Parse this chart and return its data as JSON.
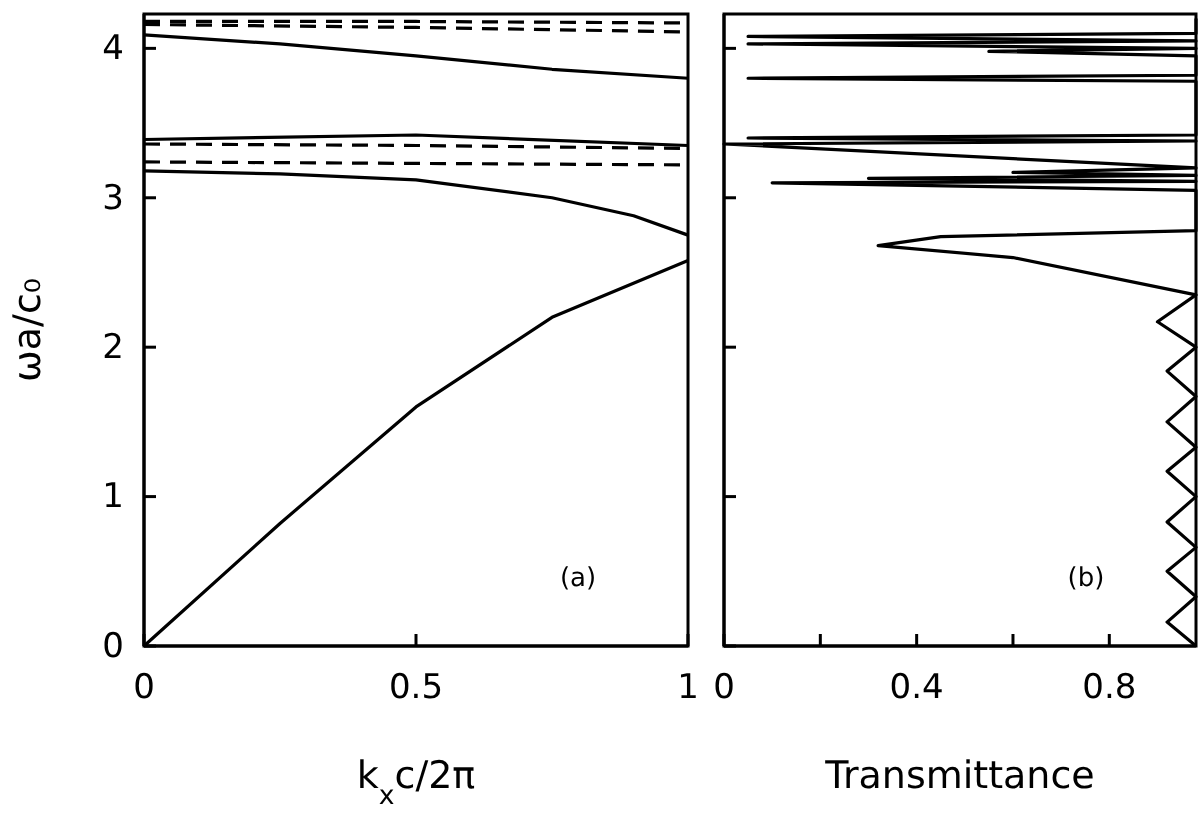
{
  "chart_data": [
    {
      "type": "line",
      "xlabel": "k$_{x}$c/2π",
      "ylabel": "ωa/c₀",
      "xlim": [
        0,
        1
      ],
      "xticks": [
        0,
        0.5,
        1
      ],
      "ylim": [
        0,
        4.23
      ],
      "yticks": [
        0,
        1,
        2,
        3,
        4
      ],
      "annotations": [
        "(a)"
      ],
      "series": [
        {
          "color": "#000000",
          "line_style": "solid",
          "x": [
            0,
            0.25,
            0.5,
            0.75,
            1
          ],
          "values": [
            0,
            0.82,
            1.6,
            2.2,
            2.58
          ]
        },
        {
          "color": "#000000",
          "line_style": "solid",
          "x": [
            0,
            0.25,
            0.5,
            0.75,
            0.9,
            1
          ],
          "values": [
            3.18,
            3.16,
            3.12,
            3.0,
            2.88,
            2.75
          ]
        },
        {
          "color": "#000000",
          "line_style": "dashed",
          "x": [
            0,
            0.5,
            1
          ],
          "values": [
            3.24,
            3.23,
            3.22
          ]
        },
        {
          "color": "#000000",
          "line_style": "dashed",
          "x": [
            0,
            0.5,
            1
          ],
          "values": [
            3.36,
            3.35,
            3.33
          ]
        },
        {
          "color": "#000000",
          "line_style": "solid",
          "x": [
            0,
            0.5,
            1
          ],
          "values": [
            3.39,
            3.42,
            3.35
          ]
        },
        {
          "color": "#000000",
          "line_style": "solid",
          "x": [
            0,
            0.25,
            0.5,
            0.75,
            1
          ],
          "values": [
            4.09,
            4.03,
            3.95,
            3.86,
            3.8
          ]
        },
        {
          "color": "#000000",
          "line_style": "dashed",
          "x": [
            0,
            0.5,
            1
          ],
          "values": [
            4.16,
            4.14,
            4.11
          ]
        },
        {
          "color": "#000000",
          "line_style": "dashed",
          "x": [
            0,
            0.5,
            1
          ],
          "values": [
            4.18,
            4.18,
            4.17
          ]
        }
      ]
    },
    {
      "type": "line",
      "xlabel": "Transmittance",
      "xlim": [
        0,
        0.98
      ],
      "xticks": [
        0,
        {
          "value": 0.2,
          "label": null
        },
        0.4,
        {
          "value": 0.6,
          "label": null
        },
        0.8
      ],
      "ylim": [
        0,
        4.23
      ],
      "yticks": [
        0,
        1,
        2,
        3,
        4
      ],
      "tick_labels": "x",
      "annotations": [
        "(b)"
      ],
      "series": [
        {
          "color": "#000000",
          "line_style": "solid",
          "x": [
            0.98,
            0.92,
            0.98,
            0.92,
            0.98,
            0.92,
            0.98,
            0.92,
            0.98,
            0.92,
            0.98,
            0.92,
            0.98,
            0.9,
            0.98,
            0.6,
            0.32,
            0.45,
            0.98,
            0.98,
            0.1,
            0.98,
            0.3,
            0.98,
            0.6,
            0.98,
            0.0,
            0.98,
            0.05,
            0.98,
            0.98,
            0.05,
            0.98,
            0.98,
            0.55,
            0.98,
            0.05,
            0.98,
            0.05,
            0.98,
            0.98
          ],
          "values": [
            0,
            0.16,
            0.33,
            0.5,
            0.66,
            0.83,
            1.0,
            1.17,
            1.33,
            1.5,
            1.67,
            1.84,
            2.0,
            2.17,
            2.35,
            2.6,
            2.68,
            2.74,
            2.78,
            3.05,
            3.1,
            3.11,
            3.13,
            3.15,
            3.17,
            3.2,
            3.36,
            3.38,
            3.4,
            3.42,
            3.78,
            3.8,
            3.82,
            3.95,
            3.98,
            4.0,
            4.03,
            4.05,
            4.08,
            4.1,
            4.2
          ]
        }
      ]
    }
  ]
}
